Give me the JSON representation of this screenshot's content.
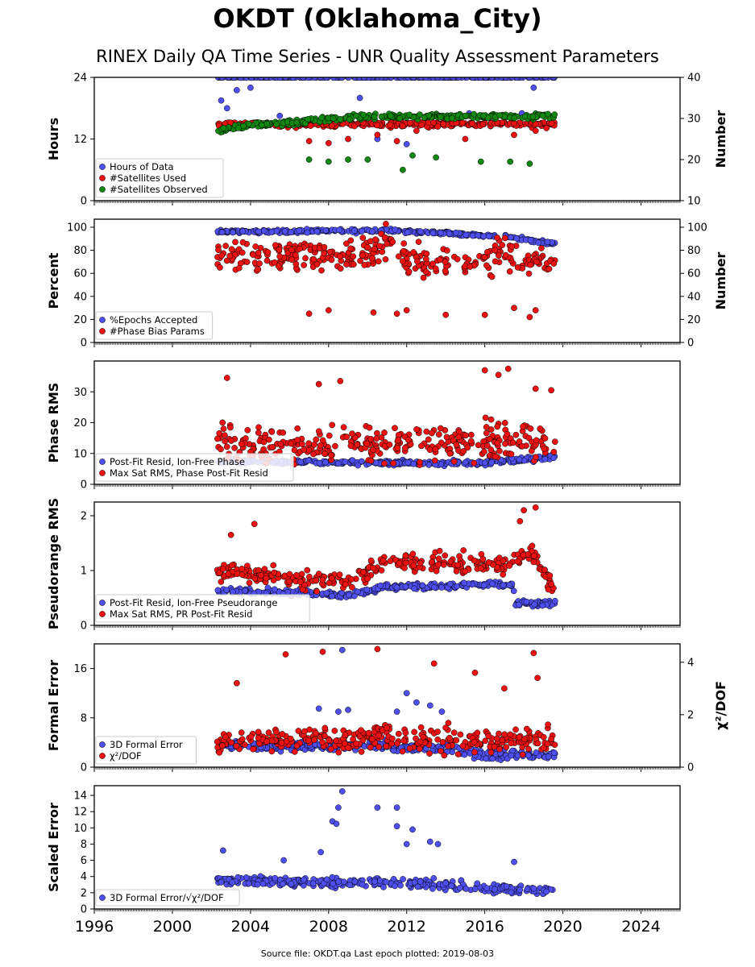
{
  "title": "OKDT (Oklahoma_City)",
  "subtitle": "RINEX Daily QA Time Series - UNR Quality Assessment Parameters",
  "footer": "Source file: OKDT.qa Last epoch plotted: 2019-08-03",
  "colors": {
    "blue": "#4f4ff0",
    "red": "#ee1111",
    "green": "#118811",
    "edge": "#000000"
  },
  "chart_data": [
    {
      "type": "scatter",
      "ylabel": "Hours",
      "y2label": "Number",
      "xlim": [
        1996,
        2026
      ],
      "ylim": [
        0,
        24
      ],
      "y2lim": [
        10,
        40
      ],
      "yticks": [
        "0",
        "12",
        "24"
      ],
      "y2ticks": [
        "10",
        "20",
        "30",
        "40"
      ],
      "legend_position": "lower-left",
      "series": [
        {
          "name": "Hours of Data",
          "color": "blue",
          "axis": "left",
          "mode": "band",
          "x_range": [
            2002.3,
            2019.6
          ],
          "level": 24.0,
          "spread": 0.05,
          "outliers": [
            [
              2002.5,
              19.5
            ],
            [
              2002.8,
              18.0
            ],
            [
              2003.3,
              21.5
            ],
            [
              2004.0,
              22.0
            ],
            [
              2005.5,
              16.5
            ],
            [
              2009.6,
              20.0
            ],
            [
              2010.5,
              12.0
            ],
            [
              2012.0,
              11.0
            ],
            [
              2015.2,
              17.0
            ],
            [
              2016.3,
              14.5
            ],
            [
              2017.9,
              17.0
            ],
            [
              2018.5,
              22.0
            ]
          ]
        },
        {
          "name": "#Satellites Used",
          "color": "red",
          "axis": "right",
          "mode": "band",
          "x_range": [
            2002.3,
            2019.6
          ],
          "level": 29.0,
          "spread": 1.0,
          "outliers": [
            [
              2007.0,
              24.5
            ],
            [
              2008.0,
              24.0
            ],
            [
              2009.0,
              25.0
            ],
            [
              2010.5,
              26.0
            ],
            [
              2011.5,
              24.5
            ],
            [
              2012.5,
              27.0
            ],
            [
              2015.0,
              25.0
            ],
            [
              2017.5,
              26.0
            ],
            [
              2018.6,
              27.0
            ]
          ]
        },
        {
          "name": "#Satellites Observed",
          "color": "green",
          "axis": "right",
          "mode": "trend",
          "points": [
            [
              2002.3,
              27.0
            ],
            [
              2004.0,
              28.5
            ],
            [
              2006.0,
              29.0
            ],
            [
              2008.0,
              30.0
            ],
            [
              2010.0,
              30.5
            ],
            [
              2012.0,
              30.5
            ],
            [
              2015.0,
              30.5
            ],
            [
              2019.6,
              30.5
            ]
          ],
          "spread": 0.7,
          "outliers": [
            [
              2007.0,
              20.0
            ],
            [
              2008.0,
              19.5
            ],
            [
              2009.0,
              20.0
            ],
            [
              2010.0,
              20.0
            ],
            [
              2011.8,
              17.5
            ],
            [
              2012.3,
              21.0
            ],
            [
              2013.5,
              20.5
            ],
            [
              2015.8,
              19.5
            ],
            [
              2017.3,
              19.5
            ],
            [
              2018.3,
              19.0
            ]
          ]
        }
      ]
    },
    {
      "type": "scatter",
      "ylabel": "Percent",
      "y2label": "Number",
      "xlim": [
        1996,
        2026
      ],
      "ylim": [
        0,
        107
      ],
      "y2lim": [
        0,
        107
      ],
      "yticks": [
        "0",
        "20",
        "40",
        "60",
        "80",
        "100"
      ],
      "y2ticks": [
        "0",
        "20",
        "40",
        "60",
        "80",
        "100"
      ],
      "legend_position": "lower-left",
      "series": [
        {
          "name": "%Epochs Accepted",
          "color": "blue",
          "axis": "left",
          "mode": "trend",
          "points": [
            [
              2002.3,
              96.0
            ],
            [
              2011.0,
              97.0
            ],
            [
              2014.0,
              95.0
            ],
            [
              2017.0,
              92.0
            ],
            [
              2018.5,
              88.0
            ],
            [
              2019.6,
              86.0
            ]
          ],
          "spread": 1.5,
          "outliers": []
        },
        {
          "name": "#Phase Bias Params",
          "color": "red",
          "axis": "right",
          "mode": "trend",
          "points": [
            [
              2002.3,
              75.0
            ],
            [
              2006.0,
              75.0
            ],
            [
              2010.0,
              78.0
            ],
            [
              2011.2,
              90.0
            ],
            [
              2012.0,
              70.0
            ],
            [
              2016.0,
              68.0
            ],
            [
              2017.0,
              82.0
            ],
            [
              2018.0,
              70.0
            ],
            [
              2019.6,
              72.0
            ]
          ],
          "spread": 14.0,
          "outliers": [
            [
              2007.0,
              25.0
            ],
            [
              2008.0,
              28.0
            ],
            [
              2010.3,
              26.0
            ],
            [
              2011.5,
              25.0
            ],
            [
              2012.0,
              28.0
            ],
            [
              2014.0,
              24.0
            ],
            [
              2016.0,
              24.0
            ],
            [
              2017.5,
              30.0
            ],
            [
              2018.3,
              22.0
            ],
            [
              2018.6,
              28.0
            ]
          ]
        }
      ]
    },
    {
      "type": "scatter",
      "ylabel": "Phase RMS",
      "xlim": [
        1996,
        2026
      ],
      "ylim": [
        0,
        40
      ],
      "yticks": [
        "0",
        "10",
        "20",
        "30"
      ],
      "legend_position": "lower-left",
      "series": [
        {
          "name": "Post-Fit Resid, Ion-Free Phase",
          "color": "blue",
          "axis": "left",
          "mode": "trend",
          "points": [
            [
              2002.3,
              7.5
            ],
            [
              2010.0,
              7.0
            ],
            [
              2016.0,
              7.0
            ],
            [
              2019.6,
              9.0
            ]
          ],
          "spread": 0.8,
          "outliers": []
        },
        {
          "name": "Max Sat RMS, Phase Post-Fit Resid",
          "color": "red",
          "axis": "left",
          "mode": "trend",
          "points": [
            [
              2002.3,
              13.0
            ],
            [
              2010.0,
              13.0
            ],
            [
              2019.6,
              14.0
            ]
          ],
          "spread": 6.0,
          "outliers": [
            [
              2002.8,
              34.5
            ],
            [
              2007.5,
              32.5
            ],
            [
              2008.6,
              33.5
            ],
            [
              2016.0,
              37.0
            ],
            [
              2016.7,
              35.5
            ],
            [
              2017.2,
              37.5
            ],
            [
              2018.6,
              31.0
            ],
            [
              2019.4,
              30.5
            ]
          ]
        }
      ]
    },
    {
      "type": "scatter",
      "ylabel": "Pseudorange RMS",
      "xlim": [
        1996,
        2026
      ],
      "ylim": [
        0,
        2.25
      ],
      "yticks": [
        "0",
        "1",
        "2"
      ],
      "legend_position": "lower-left",
      "series": [
        {
          "name": "Post-Fit Resid, Ion-Free Pseudorange",
          "color": "blue",
          "axis": "left",
          "mode": "trend",
          "points": [
            [
              2002.3,
              0.65
            ],
            [
              2006.0,
              0.6
            ],
            [
              2009.0,
              0.55
            ],
            [
              2011.0,
              0.7
            ],
            [
              2017.4,
              0.75
            ],
            [
              2017.6,
              0.4
            ],
            [
              2019.6,
              0.4
            ]
          ],
          "spread": 0.06,
          "outliers": []
        },
        {
          "name": "Max Sat RMS, PR Post-Fit Resid",
          "color": "red",
          "axis": "left",
          "mode": "trend",
          "points": [
            [
              2002.3,
              1.0
            ],
            [
              2006.0,
              0.85
            ],
            [
              2009.0,
              0.8
            ],
            [
              2011.0,
              1.2
            ],
            [
              2014.0,
              1.15
            ],
            [
              2017.4,
              1.1
            ],
            [
              2017.6,
              1.3
            ],
            [
              2018.5,
              1.3
            ],
            [
              2019.6,
              0.6
            ]
          ],
          "spread": 0.18,
          "outliers": [
            [
              2003.0,
              1.65
            ],
            [
              2004.2,
              1.85
            ],
            [
              2018.0,
              2.1
            ],
            [
              2018.6,
              2.15
            ],
            [
              2017.8,
              1.9
            ]
          ]
        }
      ]
    },
    {
      "type": "scatter",
      "ylabel": "Formal Error",
      "y2label": "χ²/DOF",
      "xlim": [
        1996,
        2026
      ],
      "ylim": [
        0,
        20
      ],
      "y2lim": [
        0,
        4.7
      ],
      "yticks": [
        "0",
        "8",
        "16"
      ],
      "y2ticks": [
        "0",
        "2",
        "4"
      ],
      "legend_position": "lower-left",
      "series": [
        {
          "name": "3D Formal Error",
          "color": "blue",
          "axis": "left",
          "mode": "trend",
          "points": [
            [
              2002.3,
              3.5
            ],
            [
              2010.0,
              3.5
            ],
            [
              2014.0,
              3.0
            ],
            [
              2016.0,
              2.0
            ],
            [
              2019.6,
              2.0
            ]
          ],
          "spread": 0.8,
          "outliers": [
            [
              2008.7,
              19.0
            ],
            [
              2007.5,
              9.5
            ],
            [
              2008.5,
              9.0
            ],
            [
              2009.0,
              9.3
            ],
            [
              2011.5,
              9.0
            ],
            [
              2012.0,
              12.0
            ],
            [
              2012.5,
              10.5
            ],
            [
              2013.2,
              10.0
            ],
            [
              2013.8,
              9.0
            ]
          ]
        },
        {
          "name": "χ²/DOF",
          "color": "red",
          "axis": "right",
          "mode": "trend",
          "points": [
            [
              2002.3,
              1.0
            ],
            [
              2010.0,
              1.1
            ],
            [
              2016.0,
              1.0
            ],
            [
              2019.6,
              1.1
            ]
          ],
          "spread": 0.5,
          "outliers": [
            [
              2005.8,
              4.3
            ],
            [
              2007.7,
              4.4
            ],
            [
              2010.5,
              4.5
            ],
            [
              2013.4,
              3.95
            ],
            [
              2015.5,
              3.6
            ],
            [
              2018.5,
              4.35
            ],
            [
              2018.7,
              3.4
            ],
            [
              2003.3,
              3.2
            ],
            [
              2017.0,
              3.0
            ]
          ]
        }
      ]
    },
    {
      "type": "scatter",
      "ylabel": "Scaled Error",
      "xlim": [
        1996,
        2026
      ],
      "ylim": [
        0,
        15.2
      ],
      "yticks": [
        "0",
        "2",
        "4",
        "6",
        "8",
        "10",
        "12",
        "14"
      ],
      "legend_position": "lower-left",
      "series": [
        {
          "name": "3D Formal Error/√χ²/DOF",
          "color": "blue",
          "axis": "left",
          "mode": "trend",
          "points": [
            [
              2002.3,
              3.5
            ],
            [
              2008.0,
              3.3
            ],
            [
              2012.0,
              3.3
            ],
            [
              2016.0,
              2.5
            ],
            [
              2019.6,
              2.3
            ]
          ],
          "spread": 0.6,
          "outliers": [
            [
              2002.6,
              7.2
            ],
            [
              2008.7,
              14.5
            ],
            [
              2008.5,
              12.5
            ],
            [
              2008.2,
              10.8
            ],
            [
              2008.4,
              10.5
            ],
            [
              2010.5,
              12.5
            ],
            [
              2011.5,
              12.5
            ],
            [
              2011.5,
              10.2
            ],
            [
              2012.3,
              9.8
            ],
            [
              2012.0,
              8.0
            ],
            [
              2013.2,
              8.3
            ],
            [
              2013.6,
              8.0
            ],
            [
              2007.6,
              7.0
            ],
            [
              2017.5,
              5.8
            ],
            [
              2005.7,
              6.0
            ]
          ]
        }
      ]
    }
  ],
  "x_axis": {
    "ticks": [
      "1996",
      "2000",
      "2004",
      "2008",
      "2012",
      "2016",
      "2020",
      "2024"
    ]
  }
}
